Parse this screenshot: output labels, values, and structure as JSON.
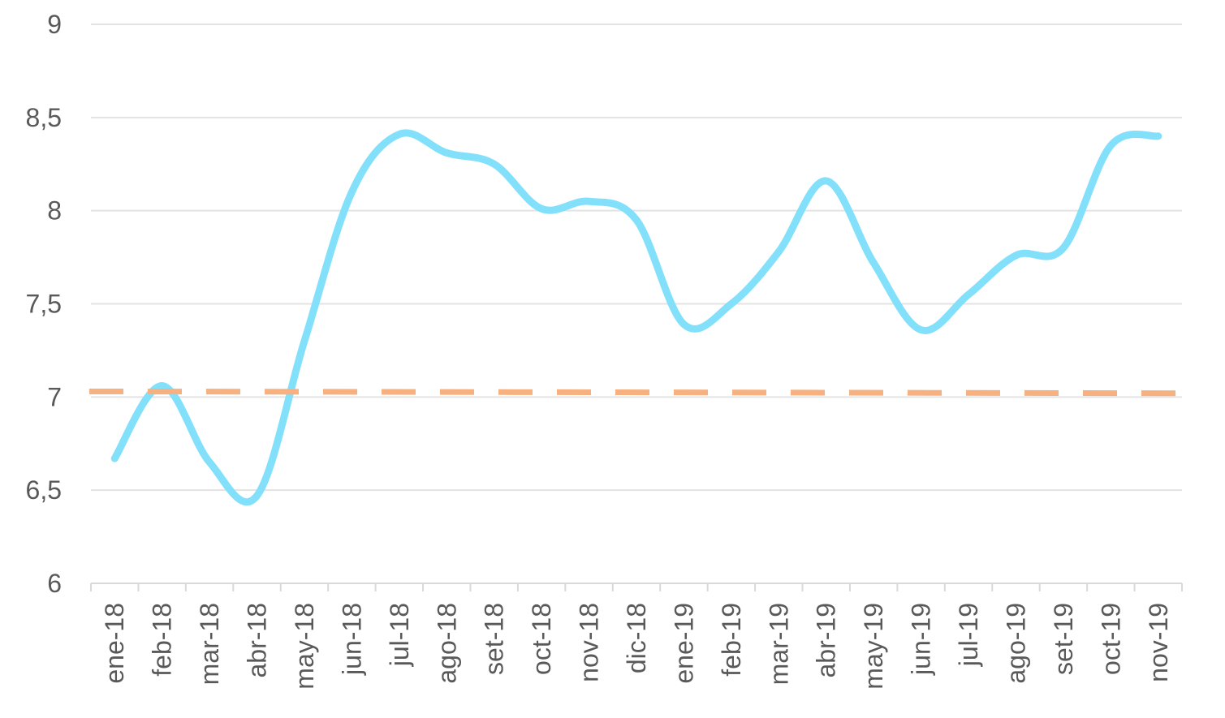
{
  "colors": {
    "background": "#ffffff",
    "grid": "#e3e3e3",
    "axis": "#d9d9d9",
    "tick_text": "#595959",
    "series_main": "#83e0fb",
    "series_reference": "#f7b07f"
  },
  "chart_data": {
    "type": "line",
    "title": "",
    "xlabel": "",
    "ylabel": "",
    "ylim": [
      6,
      9
    ],
    "y_ticks": [
      "6",
      "6,5",
      "7",
      "7,5",
      "8",
      "8,5",
      "9"
    ],
    "y_tick_values": [
      6,
      6.5,
      7,
      7.5,
      8,
      8.5,
      9
    ],
    "grid": true,
    "legend": "none",
    "categories": [
      "ene-18",
      "feb-18",
      "mar-18",
      "abr-18",
      "may-18",
      "jun-18",
      "jul-18",
      "ago-18",
      "set-18",
      "oct-18",
      "nov-18",
      "dic-18",
      "ene-19",
      "feb-19",
      "mar-19",
      "abr-19",
      "may-19",
      "jun-19",
      "jul-19",
      "ago-19",
      "set-19",
      "oct-19",
      "nov-19"
    ],
    "series": [
      {
        "style": "smooth",
        "color": "#83e0fb",
        "values": [
          6.67,
          7.06,
          6.65,
          6.47,
          7.3,
          8.1,
          8.41,
          8.31,
          8.25,
          8.01,
          8.05,
          7.95,
          7.39,
          7.5,
          7.78,
          8.16,
          7.72,
          7.36,
          7.55,
          7.76,
          7.8,
          8.35,
          8.4
        ]
      },
      {
        "style": "dashed",
        "color": "#f7b07f",
        "values": [
          7.03,
          7.03,
          7.03,
          7.03,
          7.03,
          7.03,
          7.03,
          7.03,
          7.03,
          7.025,
          7.025,
          7.025,
          7.025,
          7.025,
          7.025,
          7.025,
          7.02,
          7.02,
          7.02,
          7.02,
          7.02,
          7.02,
          7.02
        ]
      }
    ]
  }
}
